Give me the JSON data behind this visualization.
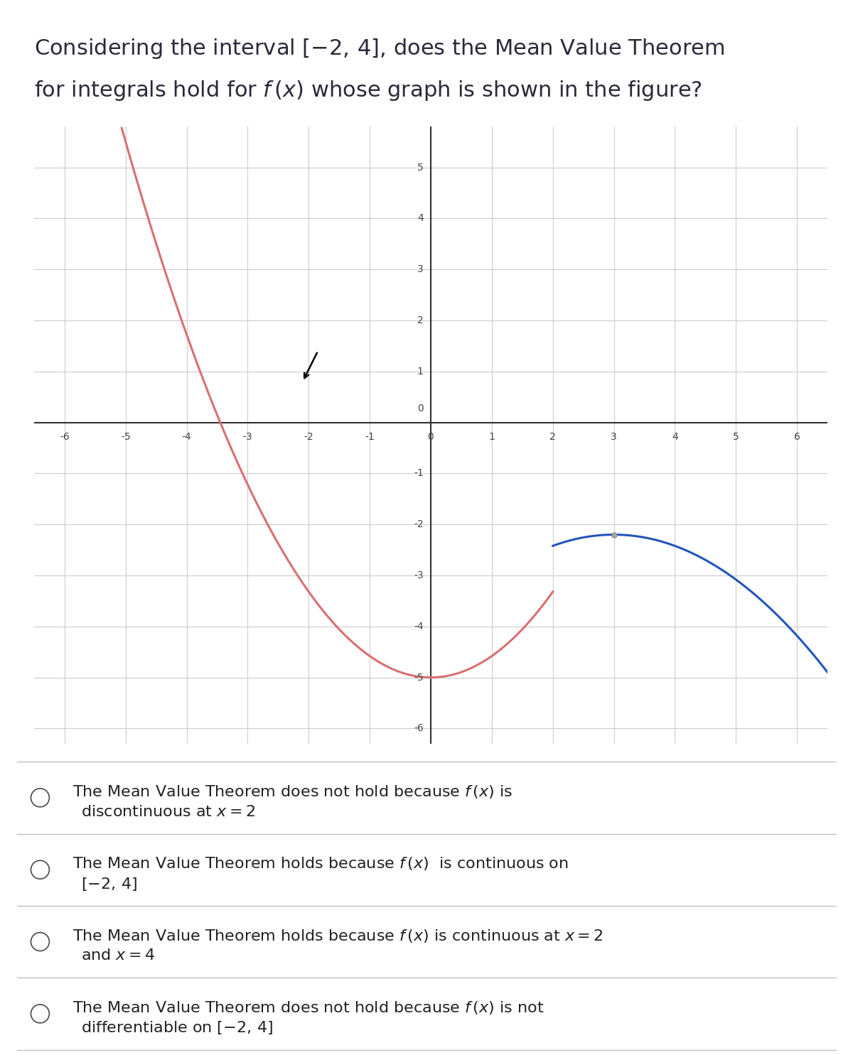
{
  "xlim": [
    -6.5,
    6.5
  ],
  "ylim": [
    -6.3,
    5.8
  ],
  "xticks": [
    -6,
    -5,
    -4,
    -3,
    -2,
    -1,
    0,
    1,
    2,
    3,
    4,
    5,
    6
  ],
  "yticks": [
    -6,
    -5,
    -4,
    -3,
    -2,
    -1,
    1,
    2,
    3,
    4,
    5
  ],
  "grid_color": "#cccccc",
  "axis_color": "#333333",
  "pink_color": "#d97070",
  "blue_color": "#2255bb",
  "bg_color": "#ffffff",
  "dot_color": "#888888",
  "title_color": "#2a2a3a",
  "option_color": "#222222",
  "radio_color": "#555555",
  "divider_color": "#bbbbbb",
  "pink_xstart": -6.5,
  "pink_xend": 2.0,
  "pink_a": 0.42,
  "pink_xmin": 0.0,
  "pink_ymin": -5.0,
  "blue_xstart": 2.0,
  "blue_xend": 6.5,
  "blue_a": -0.22,
  "blue_xmax": 3.0,
  "blue_ymax": -2.2,
  "dot_x": 3.0,
  "cursor_x": -1.85,
  "cursor_y": 1.4,
  "title_fontsize": 22,
  "tick_fontsize": 10,
  "option_fontsize": 16
}
